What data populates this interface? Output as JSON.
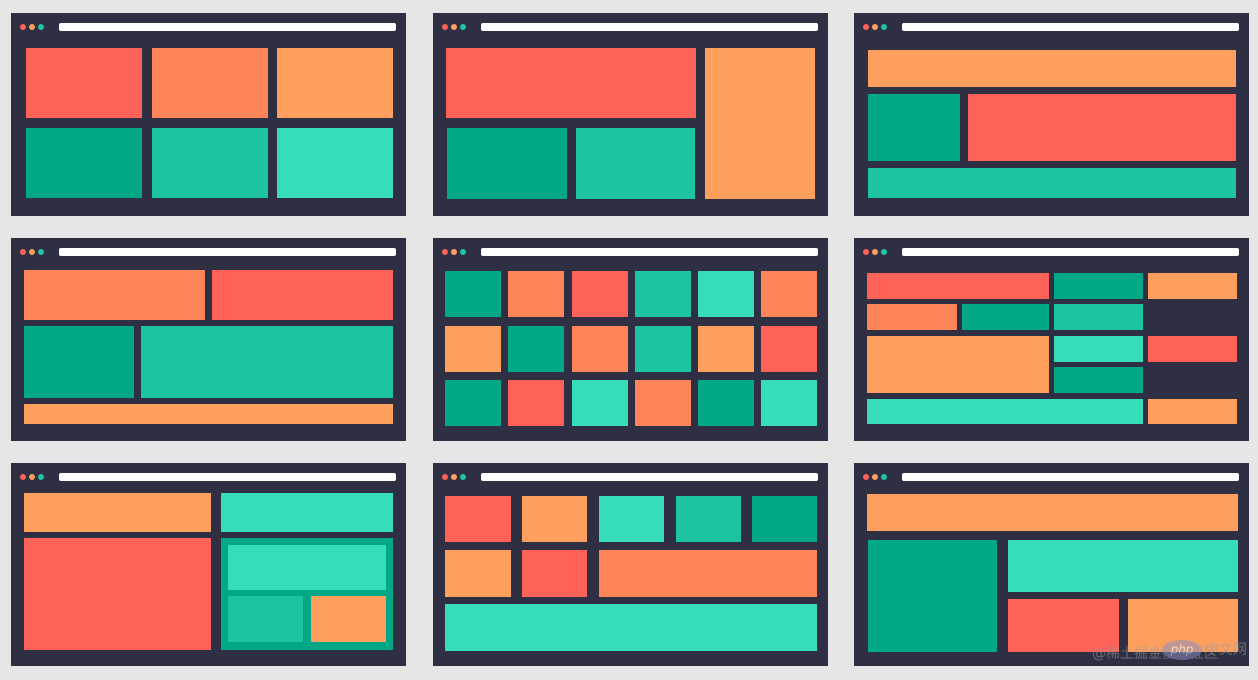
{
  "watermark": {
    "source": "@稀土掘金技术社区",
    "logo": "php",
    "site": "中文网"
  }
}
